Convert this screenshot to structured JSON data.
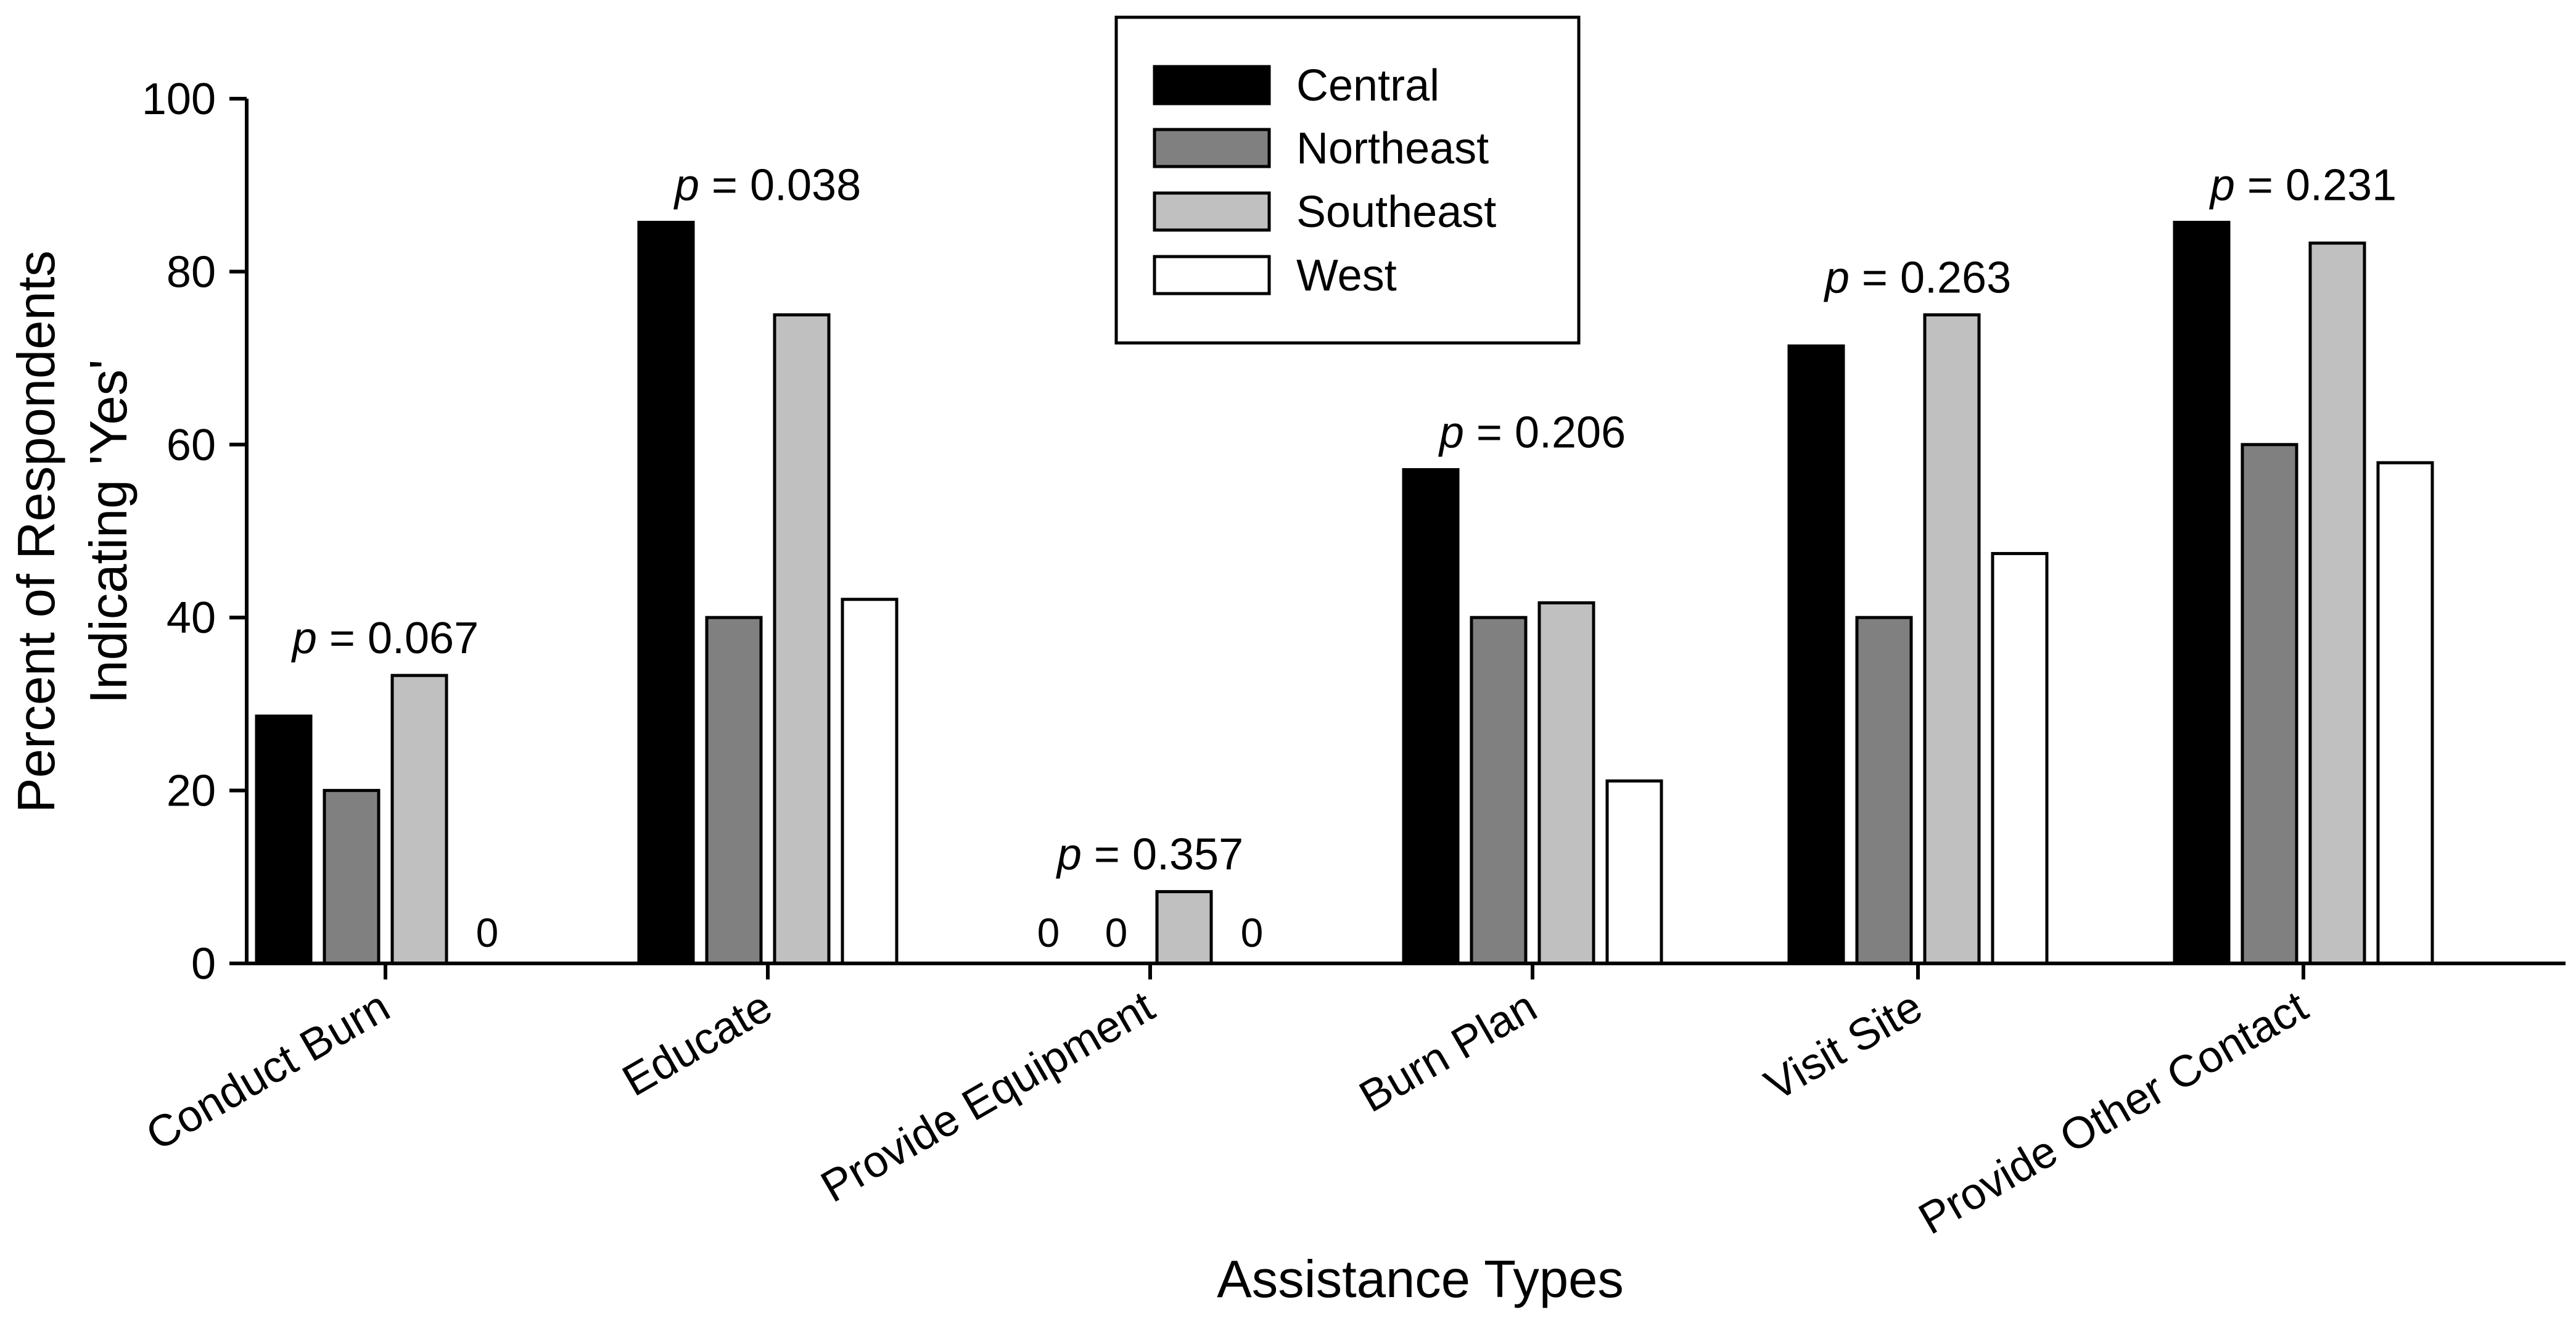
{
  "chart_data": {
    "type": "bar",
    "title": "",
    "xlabel": "Assistance Types",
    "ylabel_lines": [
      "Percent of Respondents",
      "Indicating 'Yes'"
    ],
    "ylim": [
      0,
      100
    ],
    "yticks": [
      0,
      20,
      40,
      60,
      80,
      100
    ],
    "ytick_labels": [
      "0",
      "20",
      "40",
      "60",
      "80",
      "100"
    ],
    "categories": [
      "Conduct Burn",
      "Educate",
      "Provide Equipment",
      "Burn Plan",
      "Visit Site",
      "Provide Other Contact"
    ],
    "series": [
      {
        "name": "Central",
        "color": "#000000",
        "values": [
          28.6,
          85.7,
          0,
          57.1,
          71.4,
          85.7
        ]
      },
      {
        "name": "Northeast",
        "color": "#808080",
        "values": [
          20,
          40,
          0,
          40,
          40,
          60
        ]
      },
      {
        "name": "Southeast",
        "color": "#c0c0c0",
        "values": [
          33.3,
          75,
          8.3,
          41.7,
          75,
          83.3
        ]
      },
      {
        "name": "West",
        "color": "#ffffff",
        "values": [
          0,
          42.1,
          0,
          21.1,
          47.4,
          57.9
        ]
      }
    ],
    "annotations": [
      {
        "category": "Conduct Burn",
        "p_symbol": "p",
        "p_text": " = 0.067"
      },
      {
        "category": "Educate",
        "p_symbol": "p",
        "p_text": " = 0.038"
      },
      {
        "category": "Provide Equipment",
        "p_symbol": "p",
        "p_text": " = 0.357"
      },
      {
        "category": "Burn Plan",
        "p_symbol": "p",
        "p_text": " = 0.206"
      },
      {
        "category": "Visit Site",
        "p_symbol": "p",
        "p_text": " = 0.263"
      },
      {
        "category": "Provide Other Contact",
        "p_symbol": "p",
        "p_text": " = 0.231"
      }
    ],
    "zero_label": "0",
    "legend": {
      "placement": "top-center",
      "entries": [
        "Central",
        "Northeast",
        "Southeast",
        "West"
      ]
    },
    "grid": false
  }
}
